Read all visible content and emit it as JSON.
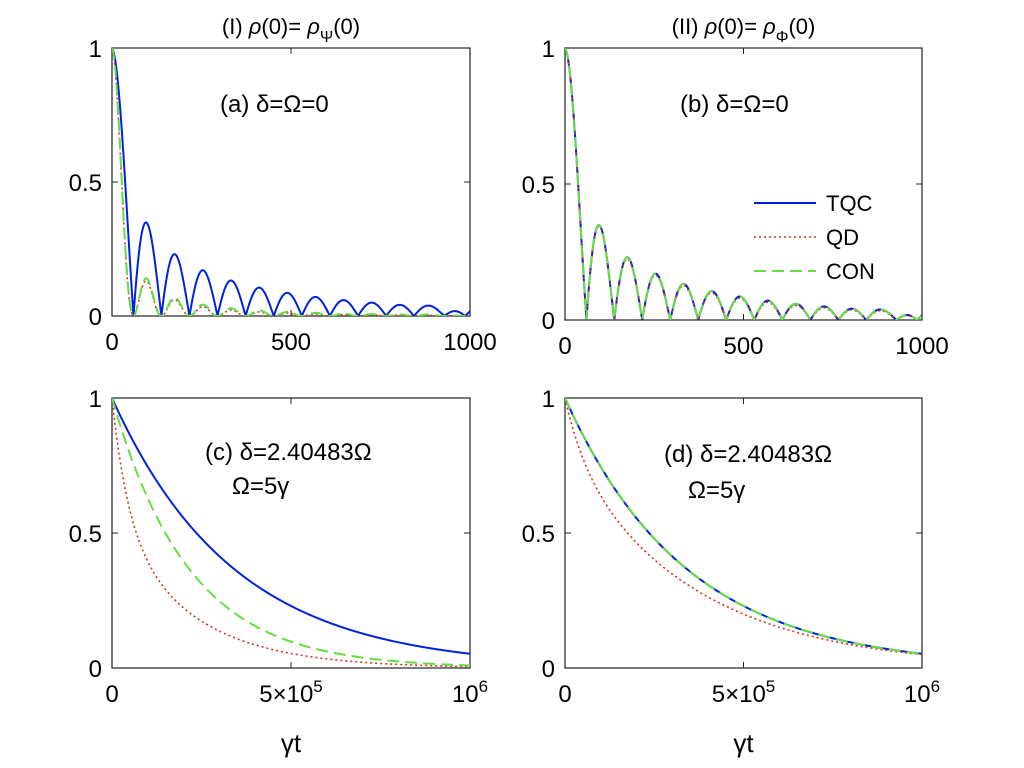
{
  "figure": {
    "xlabel": "γt",
    "colors": {
      "TQC": "#0022dd",
      "QD": "#e03020",
      "CON": "#66dd44",
      "axis": "#222222"
    },
    "legend": [
      {
        "key": "TQC",
        "label": "TQC"
      },
      {
        "key": "QD",
        "label": "QD"
      },
      {
        "key": "CON",
        "label": "CON"
      }
    ]
  },
  "chart_data": [
    {
      "id": "a",
      "type": "line",
      "panel_label": "(a)",
      "title": "(I) ρ(0)= ρ_Ψ(0)",
      "title_parts": [
        "(I) ",
        "ρ",
        "(0)= ",
        "ρ",
        "Ψ",
        "(0)"
      ],
      "annotation": [
        "(a) δ=Ω=0"
      ],
      "xlim": [
        0,
        1000
      ],
      "ylim": [
        0,
        1
      ],
      "xticks": [
        0,
        500,
        1000
      ],
      "xtick_labels": [
        "0",
        "500",
        "1000"
      ],
      "yticks": [
        0,
        0.5,
        1
      ],
      "ytick_labels": [
        "0",
        "0.5",
        "1"
      ],
      "series": [
        {
          "name": "TQC",
          "model": "bessel",
          "params": {
            "w": 0.04,
            "k": 0.006,
            "p": 1
          }
        },
        {
          "name": "QD",
          "model": "bessel",
          "params": {
            "w": 0.04,
            "k": 0.009,
            "p": 2
          }
        },
        {
          "name": "CON",
          "model": "bessel",
          "params": {
            "w": 0.04,
            "k": 0.006,
            "p": 2
          }
        }
      ]
    },
    {
      "id": "b",
      "type": "line",
      "panel_label": "(b)",
      "title": "(II) ρ(0)= ρ_Φ(0)",
      "title_parts": [
        "(II) ",
        "ρ",
        "(0)= ",
        "ρ",
        "Φ",
        "(0)"
      ],
      "annotation": [
        "(b) δ=Ω=0"
      ],
      "xlim": [
        0,
        1000
      ],
      "ylim": [
        0,
        1
      ],
      "xticks": [
        0,
        500,
        1000
      ],
      "xtick_labels": [
        "0",
        "500",
        "1000"
      ],
      "yticks": [
        0,
        0.5,
        1
      ],
      "ytick_labels": [
        "0",
        "0.5",
        "1"
      ],
      "legend": "right-middle",
      "series": [
        {
          "name": "TQC",
          "model": "bessel",
          "params": {
            "w": 0.04,
            "k": 0.006,
            "p": 1
          }
        },
        {
          "name": "QD",
          "model": "bessel",
          "params": {
            "w": 0.04,
            "k": 0.0066,
            "p": 1
          }
        },
        {
          "name": "CON",
          "model": "bessel",
          "params": {
            "w": 0.04,
            "k": 0.006,
            "p": 1
          }
        }
      ]
    },
    {
      "id": "c",
      "type": "line",
      "panel_label": "(c)",
      "annotation": [
        "(c) δ=2.40483Ω",
        "Ω=5γ"
      ],
      "xlim": [
        0,
        1000000
      ],
      "ylim": [
        0,
        1
      ],
      "xticks": [
        0,
        500000,
        1000000
      ],
      "xtick_labels": [
        "0",
        "5×10^5",
        "10^6"
      ],
      "yticks": [
        0,
        0.5,
        1
      ],
      "ytick_labels": [
        "0",
        "0.5",
        "1"
      ],
      "series": [
        {
          "name": "TQC",
          "model": "decay",
          "params": {
            "a": 1.0,
            "t1": 340000,
            "b": 0
          }
        },
        {
          "name": "QD",
          "model": "decay",
          "params": {
            "a": 0.45,
            "t1": 45000,
            "b": 0.55,
            "t2": 215000
          }
        },
        {
          "name": "CON",
          "model": "decay",
          "params": {
            "a": 1.0,
            "t1": 215000,
            "b": 0
          }
        }
      ]
    },
    {
      "id": "d",
      "type": "line",
      "panel_label": "(d)",
      "annotation": [
        "(d) δ=2.40483Ω",
        "Ω=5γ"
      ],
      "xlim": [
        0,
        1000000
      ],
      "ylim": [
        0,
        1
      ],
      "xticks": [
        0,
        500000,
        1000000
      ],
      "xtick_labels": [
        "0",
        "5×10^5",
        "10^6"
      ],
      "yticks": [
        0,
        0.5,
        1
      ],
      "ytick_labels": [
        "0",
        "0.5",
        "1"
      ],
      "series": [
        {
          "name": "TQC",
          "model": "decay",
          "params": {
            "a": 1.0,
            "t1": 340000,
            "b": 0
          }
        },
        {
          "name": "QD",
          "model": "decay",
          "params": {
            "a": 0.2,
            "t1": 55000,
            "b": 0.8,
            "t2": 360000
          }
        },
        {
          "name": "CON",
          "model": "decay",
          "params": {
            "a": 1.0,
            "t1": 340000,
            "b": 0
          }
        }
      ]
    }
  ]
}
